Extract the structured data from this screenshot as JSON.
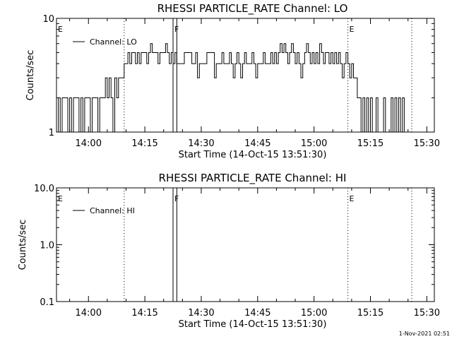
{
  "chart_data": [
    {
      "type": "line",
      "title": "RHESSI PARTICLE_RATE Channel: LO",
      "xlabel": "Start Time (14-Oct-15 13:51:30)",
      "ylabel": "Counts/sec",
      "y_scale": "log",
      "ylim": [
        1,
        10
      ],
      "y_ticks": [
        "1",
        "10"
      ],
      "x_range": [
        "13:51:30",
        "15:32:00"
      ],
      "x_ticks": [
        "14:00",
        "14:15",
        "14:30",
        "14:45",
        "15:00",
        "15:15",
        "15:30"
      ],
      "legend": "top-left",
      "series": [
        {
          "name": "Channel: LO",
          "points": [
            [
              "13:51:30",
              1
            ],
            [
              "13:52:00",
              2
            ],
            [
              "13:52:30",
              1
            ],
            [
              "13:53:00",
              2
            ],
            [
              "13:54:00",
              2
            ],
            [
              "13:54:30",
              1
            ],
            [
              "13:55:00",
              2
            ],
            [
              "13:55:30",
              1
            ],
            [
              "13:56:00",
              2
            ],
            [
              "13:57:00",
              2
            ],
            [
              "13:57:30",
              1
            ],
            [
              "13:58:00",
              2
            ],
            [
              "13:58:30",
              1
            ],
            [
              "13:59:00",
              2
            ],
            [
              "14:00:00",
              2
            ],
            [
              "14:00:30",
              1
            ],
            [
              "14:01:00",
              2
            ],
            [
              "14:02:00",
              2
            ],
            [
              "14:02:30",
              1
            ],
            [
              "14:03:00",
              2
            ],
            [
              "14:04:00",
              2
            ],
            [
              "14:04:30",
              3
            ],
            [
              "14:05:00",
              2
            ],
            [
              "14:05:30",
              3
            ],
            [
              "14:06:00",
              2
            ],
            [
              "14:06:30",
              1
            ],
            [
              "14:07:00",
              3
            ],
            [
              "14:07:30",
              2
            ],
            [
              "14:08:00",
              3
            ],
            [
              "14:09:00",
              3
            ],
            [
              "14:09:30",
              4
            ],
            [
              "14:10:00",
              4
            ],
            [
              "14:10:30",
              5
            ],
            [
              "14:11:00",
              4
            ],
            [
              "14:11:30",
              5
            ],
            [
              "14:12:00",
              5
            ],
            [
              "14:12:30",
              4
            ],
            [
              "14:13:00",
              5
            ],
            [
              "14:13:30",
              4
            ],
            [
              "14:14:00",
              5
            ],
            [
              "14:15:00",
              5
            ],
            [
              "14:15:30",
              4
            ],
            [
              "14:16:00",
              5
            ],
            [
              "14:16:30",
              6
            ],
            [
              "14:17:00",
              5
            ],
            [
              "14:18:00",
              5
            ],
            [
              "14:18:30",
              4
            ],
            [
              "14:19:00",
              5
            ],
            [
              "14:20:00",
              5
            ],
            [
              "14:20:30",
              6
            ],
            [
              "14:21:00",
              5
            ],
            [
              "14:21:30",
              4
            ],
            [
              "14:22:00",
              5
            ],
            [
              "14:22:30",
              4
            ],
            [
              "14:23:00",
              5
            ],
            [
              "14:23:30",
              4
            ],
            [
              "14:24:00",
              4
            ],
            [
              "14:25:00",
              4
            ],
            [
              "14:25:30",
              5
            ],
            [
              "14:26:00",
              5
            ],
            [
              "14:27:00",
              5
            ],
            [
              "14:27:30",
              4
            ],
            [
              "14:28:00",
              4
            ],
            [
              "14:28:30",
              5
            ],
            [
              "14:29:00",
              3
            ],
            [
              "14:29:30",
              4
            ],
            [
              "14:30:00",
              4
            ],
            [
              "14:31:00",
              4
            ],
            [
              "14:31:30",
              5
            ],
            [
              "14:32:00",
              5
            ],
            [
              "14:33:00",
              5
            ],
            [
              "14:33:30",
              3
            ],
            [
              "14:34:00",
              4
            ],
            [
              "14:35:00",
              4
            ],
            [
              "14:35:30",
              5
            ],
            [
              "14:36:00",
              4
            ],
            [
              "14:37:00",
              4
            ],
            [
              "14:37:30",
              5
            ],
            [
              "14:38:00",
              4
            ],
            [
              "14:38:30",
              3
            ],
            [
              "14:39:00",
              4
            ],
            [
              "14:39:30",
              5
            ],
            [
              "14:40:00",
              4
            ],
            [
              "14:40:30",
              3
            ],
            [
              "14:41:00",
              4
            ],
            [
              "14:41:30",
              5
            ],
            [
              "14:42:00",
              4
            ],
            [
              "14:43:00",
              4
            ],
            [
              "14:43:30",
              5
            ],
            [
              "14:44:00",
              4
            ],
            [
              "14:44:30",
              3
            ],
            [
              "14:45:00",
              4
            ],
            [
              "14:46:00",
              4
            ],
            [
              "14:46:30",
              5
            ],
            [
              "14:47:00",
              4
            ],
            [
              "14:48:00",
              4
            ],
            [
              "14:48:30",
              5
            ],
            [
              "14:49:00",
              4
            ],
            [
              "14:49:30",
              5
            ],
            [
              "14:50:00",
              4
            ],
            [
              "14:50:30",
              5
            ],
            [
              "14:51:00",
              6
            ],
            [
              "14:51:30",
              5
            ],
            [
              "14:52:00",
              6
            ],
            [
              "14:52:30",
              5
            ],
            [
              "14:53:00",
              4
            ],
            [
              "14:53:30",
              5
            ],
            [
              "14:54:00",
              6
            ],
            [
              "14:54:30",
              5
            ],
            [
              "14:55:00",
              4
            ],
            [
              "14:55:30",
              5
            ],
            [
              "14:56:00",
              4
            ],
            [
              "14:56:30",
              3
            ],
            [
              "14:57:00",
              4
            ],
            [
              "14:57:30",
              5
            ],
            [
              "14:58:00",
              6
            ],
            [
              "14:58:30",
              5
            ],
            [
              "14:59:00",
              4
            ],
            [
              "14:59:30",
              5
            ],
            [
              "15:00:00",
              4
            ],
            [
              "15:00:30",
              5
            ],
            [
              "15:01:00",
              4
            ],
            [
              "15:01:30",
              6
            ],
            [
              "15:02:00",
              5
            ],
            [
              "15:02:30",
              4
            ],
            [
              "15:03:00",
              5
            ],
            [
              "15:03:30",
              5
            ],
            [
              "15:04:00",
              4
            ],
            [
              "15:04:30",
              5
            ],
            [
              "15:05:00",
              4
            ],
            [
              "15:05:30",
              5
            ],
            [
              "15:06:00",
              4
            ],
            [
              "15:06:30",
              5
            ],
            [
              "15:07:00",
              4
            ],
            [
              "15:07:30",
              3
            ],
            [
              "15:08:00",
              4
            ],
            [
              "15:08:30",
              5
            ],
            [
              "15:09:00",
              4
            ],
            [
              "15:09:30",
              3
            ],
            [
              "15:10:00",
              4
            ],
            [
              "15:10:30",
              3
            ],
            [
              "15:11:00",
              3
            ],
            [
              "15:11:30",
              2
            ],
            [
              "15:12:00",
              2
            ],
            [
              "15:12:30",
              1
            ],
            [
              "15:13:00",
              2
            ],
            [
              "15:13:30",
              1
            ],
            [
              "15:14:00",
              2
            ],
            [
              "15:14:30",
              1
            ],
            [
              "15:15:00",
              2
            ],
            [
              "15:15:30",
              1
            ],
            [
              "15:16:00",
              1
            ],
            [
              "15:16:30",
              2
            ],
            [
              "15:17:00",
              1
            ],
            [
              "15:18:00",
              1
            ],
            [
              "15:18:30",
              2
            ],
            [
              "15:19:00",
              1
            ],
            [
              "15:20:00",
              1
            ],
            [
              "15:20:30",
              2
            ],
            [
              "15:21:00",
              1
            ],
            [
              "15:21:30",
              2
            ],
            [
              "15:22:00",
              1
            ],
            [
              "15:22:30",
              2
            ],
            [
              "15:23:00",
              1
            ],
            [
              "15:23:30",
              2
            ],
            [
              "15:24:00",
              1
            ],
            [
              "15:25:00",
              1
            ]
          ]
        }
      ],
      "annotations": [
        {
          "label": "E",
          "time": "13:51:30",
          "style": "dotted"
        },
        {
          "label": "",
          "time": "14:09:30",
          "style": "dotted"
        },
        {
          "label": "F",
          "time": "14:22:30",
          "style": "solid"
        },
        {
          "label": "",
          "time": "14:23:30",
          "style": "solid"
        },
        {
          "label": "E",
          "time": "15:09:00",
          "style": "dotted"
        },
        {
          "label": "",
          "time": "15:26:00",
          "style": "dotted"
        }
      ]
    },
    {
      "type": "line",
      "title": "RHESSI PARTICLE_RATE Channel: HI",
      "xlabel": "Start Time (14-Oct-15 13:51:30)",
      "ylabel": "Counts/sec",
      "y_scale": "log",
      "ylim": [
        0.1,
        10
      ],
      "y_ticks": [
        "0.1",
        "1.0",
        "10.0"
      ],
      "x_range": [
        "13:51:30",
        "15:32:00"
      ],
      "x_ticks": [
        "14:00",
        "14:15",
        "14:30",
        "14:45",
        "15:00",
        "15:15",
        "15:30"
      ],
      "legend": "top-left",
      "series": [
        {
          "name": "Channel: HI",
          "points": []
        }
      ],
      "annotations": [
        {
          "label": "E",
          "time": "13:51:30",
          "style": "dotted"
        },
        {
          "label": "",
          "time": "14:09:30",
          "style": "dotted"
        },
        {
          "label": "F",
          "time": "14:22:30",
          "style": "solid"
        },
        {
          "label": "",
          "time": "14:23:30",
          "style": "solid"
        },
        {
          "label": "E",
          "time": "15:09:00",
          "style": "dotted"
        },
        {
          "label": "",
          "time": "15:26:00",
          "style": "dotted"
        }
      ]
    }
  ],
  "footer": {
    "timestamp": "1-Nov-2021 02:51"
  }
}
